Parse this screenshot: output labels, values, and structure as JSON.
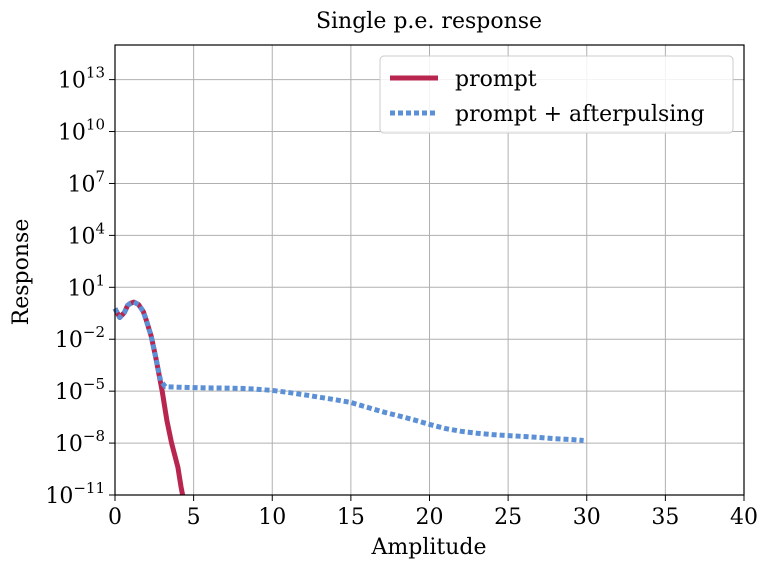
{
  "chart_data": {
    "type": "line",
    "title": "Single p.e. response",
    "xlabel": "Amplitude",
    "ylabel": "Response",
    "xlim": [
      0,
      40
    ],
    "ylim": [
      1e-11,
      1000000000000000.0
    ],
    "yscale": "log",
    "grid": true,
    "legend_position": "top-right",
    "xticks": [
      "0",
      "5",
      "10",
      "15",
      "20",
      "25",
      "30",
      "35",
      "40"
    ],
    "yticks": [
      {
        "base": "10",
        "exp": "−11"
      },
      {
        "base": "10",
        "exp": "−8"
      },
      {
        "base": "10",
        "exp": "−5"
      },
      {
        "base": "10",
        "exp": "−2"
      },
      {
        "base": "10",
        "exp": "1"
      },
      {
        "base": "10",
        "exp": "4"
      },
      {
        "base": "10",
        "exp": "7"
      },
      {
        "base": "10",
        "exp": "10"
      },
      {
        "base": "10",
        "exp": "13"
      }
    ],
    "series": [
      {
        "name": "prompt",
        "color": "#b8264f",
        "style": "solid",
        "x": [
          0,
          0.3,
          0.6,
          0.8,
          1.0,
          1.2,
          1.5,
          1.8,
          2.0,
          2.3,
          2.6,
          3.0,
          3.3,
          3.6,
          4.0,
          4.2,
          4.3
        ],
        "y": [
          0.6,
          0.18,
          0.35,
          0.9,
          1.2,
          1.4,
          1.0,
          0.4,
          0.12,
          0.015,
          0.0008,
          1e-05,
          2e-07,
          1e-08,
          4e-10,
          3e-11,
          1e-11
        ]
      },
      {
        "name": "prompt + afterpulsing",
        "color": "#5b8fd6",
        "style": "dotted",
        "x": [
          0,
          0.3,
          0.6,
          0.8,
          1.0,
          1.2,
          1.5,
          1.8,
          2.0,
          2.3,
          2.6,
          2.9,
          3.2,
          4,
          5,
          6,
          7,
          8,
          9,
          10,
          11,
          12,
          13,
          14,
          15,
          16,
          17,
          18,
          19,
          20,
          21,
          22,
          23,
          24,
          25,
          26,
          27,
          28,
          29,
          29.8
        ],
        "y": [
          0.6,
          0.18,
          0.35,
          0.9,
          1.2,
          1.4,
          1.0,
          0.4,
          0.12,
          0.015,
          0.0008,
          4e-05,
          1.8e-05,
          1.7e-05,
          1.6e-05,
          1.55e-05,
          1.5e-05,
          1.45e-05,
          1.3e-05,
          1.1e-05,
          8.5e-06,
          6.2e-06,
          4.5e-06,
          3.2e-06,
          2.2e-06,
          1.2e-06,
          6.5e-07,
          3.8e-07,
          2.2e-07,
          1.2e-07,
          7e-08,
          4.8e-08,
          3.7e-08,
          3.1e-08,
          2.7e-08,
          2.4e-08,
          2.1e-08,
          1.8e-08,
          1.6e-08,
          1.4e-08
        ]
      }
    ]
  }
}
